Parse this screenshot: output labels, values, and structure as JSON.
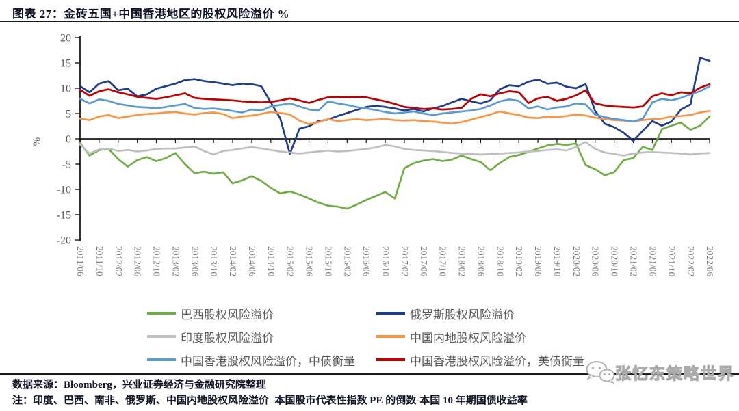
{
  "title": "图表 27：金砖五国+中国香港地区的股权风险溢价 %",
  "chart_data": {
    "type": "line",
    "title": "金砖五国+中国香港地区的股权风险溢价",
    "ylabel": "%",
    "ylim": [
      -20,
      20
    ],
    "yticks": [
      20,
      15,
      10,
      5,
      0,
      -5,
      -10,
      -15,
      -20
    ],
    "grid": false,
    "legend_position": "bottom",
    "x_start": "2011/06",
    "x_end": "2022/06",
    "x_step_months": 2,
    "x_tick_labels": [
      "2011/06",
      "2011/10",
      "2012/02",
      "2012/06",
      "2012/10",
      "2013/02",
      "2013/06",
      "2013/10",
      "2014/02",
      "2014/06",
      "2014/10",
      "2015/02",
      "2015/06",
      "2015/10",
      "2016/02",
      "2016/06",
      "2016/10",
      "2017/02",
      "2017/06",
      "2017/10",
      "2018/02",
      "2018/06",
      "2018/10",
      "2019/02",
      "2019/06",
      "2019/10",
      "2020/02",
      "2020/06",
      "2020/10",
      "2021/02",
      "2021/06",
      "2021/10",
      "2022/02",
      "2022/06"
    ],
    "series": [
      {
        "name": "巴西股权风险溢价",
        "color": "#70AD47",
        "values": [
          -0.8,
          -3.3,
          -2.2,
          -2.0,
          -4.0,
          -5.5,
          -4.2,
          -3.6,
          -4.4,
          -3.8,
          -2.8,
          -5.0,
          -6.8,
          -6.5,
          -6.9,
          -6.6,
          -8.8,
          -8.2,
          -7.4,
          -8.3,
          -9.7,
          -10.8,
          -10.4,
          -11.0,
          -11.8,
          -12.6,
          -13.2,
          -13.4,
          -13.8,
          -13.0,
          -12.1,
          -11.3,
          -10.5,
          -11.8,
          -5.8,
          -4.8,
          -4.3,
          -4.0,
          -4.4,
          -4.1,
          -3.3,
          -4.0,
          -4.6,
          -6.2,
          -4.8,
          -3.6,
          -3.2,
          -2.6,
          -1.9,
          -1.3,
          -1.0,
          -1.2,
          -0.9,
          -5.2,
          -6.0,
          -7.2,
          -6.6,
          -4.2,
          -3.8,
          -1.6,
          -2.2,
          1.9,
          2.6,
          3.2,
          1.8,
          2.6,
          4.4
        ]
      },
      {
        "name": "俄罗斯股权风险溢价",
        "color": "#1F3D8A",
        "values": [
          10.4,
          9.2,
          10.9,
          11.4,
          9.6,
          9.9,
          8.4,
          8.8,
          9.9,
          10.4,
          10.9,
          11.6,
          11.8,
          11.4,
          11.2,
          10.9,
          10.6,
          10.9,
          10.8,
          10.4,
          7.2,
          4.0,
          -3.0,
          2.0,
          2.5,
          3.5,
          3.8,
          4.5,
          5.1,
          5.7,
          6.3,
          6.5,
          6.3,
          6.0,
          5.6,
          5.9,
          5.4,
          6.0,
          6.5,
          7.2,
          7.9,
          7.4,
          7.0,
          7.6,
          9.8,
          10.6,
          10.4,
          11.3,
          11.7,
          10.9,
          11.1,
          10.3,
          10.0,
          10.8,
          5.5,
          3.0,
          2.3,
          1.2,
          -0.4,
          1.6,
          3.5,
          2.6,
          3.4,
          5.8,
          6.8,
          16.0,
          15.4
        ]
      },
      {
        "name": "印度股权风险溢价",
        "color": "#BFBFBF",
        "values": [
          -1.1,
          -2.9,
          -2.1,
          -1.9,
          -2.4,
          -2.2,
          -2.5,
          -2.3,
          -2.0,
          -1.9,
          -1.9,
          -1.7,
          -1.5,
          -2.4,
          -3.1,
          -2.4,
          -2.2,
          -1.9,
          -1.6,
          -1.9,
          -2.2,
          -2.5,
          -2.7,
          -2.9,
          -2.7,
          -2.5,
          -2.3,
          -2.5,
          -2.4,
          -2.2,
          -2.0,
          -1.7,
          -1.2,
          -1.5,
          -2.0,
          -2.2,
          -2.3,
          -2.4,
          -2.6,
          -2.8,
          -2.9,
          -3.0,
          -3.1,
          -3.0,
          -2.9,
          -2.8,
          -2.7,
          -2.5,
          -2.4,
          -2.2,
          -2.1,
          -2.3,
          -1.6,
          -0.6,
          -2.0,
          -2.7,
          -3.0,
          -3.3,
          -2.9,
          -2.7,
          -2.6,
          -2.7,
          -2.8,
          -2.9,
          -3.1,
          -2.9,
          -2.8
        ]
      },
      {
        "name": "中国内地股权风险溢价",
        "color": "#F79646",
        "values": [
          4.0,
          3.7,
          4.4,
          4.7,
          4.1,
          4.4,
          4.7,
          4.9,
          5.0,
          5.2,
          5.3,
          5.0,
          4.8,
          5.1,
          5.2,
          4.9,
          4.1,
          4.4,
          4.6,
          4.9,
          5.3,
          5.1,
          4.8,
          3.6,
          2.9,
          3.3,
          3.9,
          3.5,
          3.7,
          3.9,
          3.7,
          3.8,
          3.9,
          3.7,
          3.6,
          3.7,
          3.5,
          3.4,
          3.2,
          3.0,
          3.3,
          3.8,
          4.3,
          4.8,
          5.4,
          5.0,
          4.7,
          4.2,
          4.1,
          4.4,
          4.3,
          4.5,
          4.8,
          4.6,
          4.2,
          3.9,
          3.7,
          3.6,
          3.4,
          3.7,
          3.9,
          4.0,
          4.4,
          4.5,
          4.7,
          5.2,
          5.5
        ]
      },
      {
        "name": "中国香港股权风险溢价，中债衡量",
        "color": "#5B9BD5",
        "values": [
          7.9,
          7.0,
          7.8,
          7.5,
          6.9,
          6.6,
          6.3,
          6.2,
          6.0,
          6.3,
          6.6,
          6.9,
          6.1,
          5.9,
          6.0,
          5.8,
          5.5,
          5.2,
          5.8,
          5.6,
          6.4,
          6.7,
          7.0,
          6.4,
          5.8,
          5.6,
          7.4,
          7.0,
          6.7,
          6.3,
          6.0,
          5.7,
          5.3,
          5.0,
          5.2,
          5.4,
          5.0,
          4.7,
          5.0,
          5.2,
          5.4,
          5.6,
          5.9,
          6.6,
          7.4,
          7.8,
          7.5,
          6.0,
          6.4,
          5.8,
          6.2,
          6.4,
          7.0,
          6.8,
          4.8,
          4.3,
          3.9,
          3.7,
          3.4,
          4.0,
          7.2,
          7.9,
          7.6,
          8.1,
          8.8,
          9.4,
          10.4
        ]
      },
      {
        "name": "中国香港股权风险溢价，美债衡量",
        "color": "#C00000",
        "values": [
          9.7,
          8.5,
          9.4,
          9.8,
          9.2,
          8.8,
          8.3,
          8.1,
          7.9,
          8.2,
          8.6,
          9.0,
          8.1,
          7.9,
          7.8,
          7.7,
          7.6,
          7.4,
          7.3,
          7.2,
          7.3,
          7.6,
          8.0,
          7.6,
          7.1,
          7.7,
          8.2,
          8.3,
          8.3,
          8.3,
          8.2,
          7.8,
          7.4,
          6.9,
          6.3,
          6.1,
          5.9,
          6.0,
          5.8,
          5.9,
          6.1,
          7.9,
          8.8,
          8.4,
          9.0,
          9.4,
          9.2,
          7.1,
          8.0,
          8.3,
          7.5,
          7.9,
          8.6,
          9.6,
          7.0,
          6.6,
          6.4,
          6.3,
          6.2,
          6.4,
          8.4,
          9.0,
          8.6,
          9.2,
          9.0,
          10.1,
          10.8
        ]
      }
    ]
  },
  "footer": {
    "source": "数据来源：Bloomberg，兴业证券经济与金融研究院整理",
    "note": "注：印度、巴西、南非、俄罗斯、中国内地股权风险溢价=本国股市代表性指数 PE 的倒数-本国 10 年期国债收益率"
  },
  "watermark": {
    "text": "张忆东策略世界",
    "icon": "wechat-icon"
  }
}
